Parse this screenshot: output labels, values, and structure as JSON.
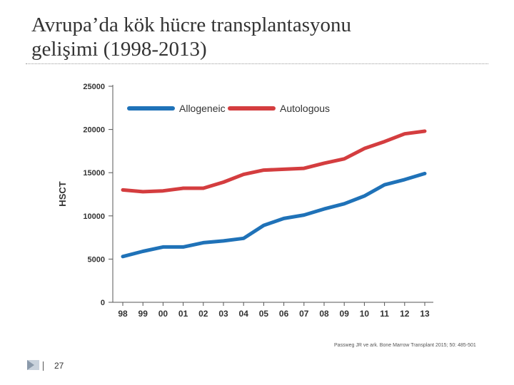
{
  "slide": {
    "title_line1": "Avrupa’da kök hücre transplantasyonu",
    "title_line2": "gelişimi (1998-2013)",
    "citation": "Passweg JR ve ark. Bone Marrow Transplant 2015; 50: 485-501",
    "page_number": "27"
  },
  "colors": {
    "allogeneic": "#1f72b8",
    "autologous": "#d43d3f",
    "axis": "#555555",
    "text": "#333333"
  },
  "chart_data": {
    "type": "line",
    "title": "",
    "xlabel": "",
    "ylabel": "HSCT",
    "categories": [
      "98",
      "99",
      "00",
      "01",
      "02",
      "03",
      "04",
      "05",
      "06",
      "07",
      "08",
      "09",
      "10",
      "11",
      "12",
      "13"
    ],
    "ylim": [
      0,
      25000
    ],
    "yticks": [
      0,
      5000,
      10000,
      15000,
      20000,
      25000
    ],
    "ytick_labels": [
      "0",
      "5000",
      "10000",
      "15000",
      "20000",
      "25000"
    ],
    "legend_position": "top",
    "grid": false,
    "series": [
      {
        "name": "Allogeneic",
        "values": [
          5300,
          5900,
          6400,
          6400,
          6900,
          7100,
          7400,
          8900,
          9700,
          10100,
          10800,
          11400,
          12300,
          13600,
          14200,
          14900
        ]
      },
      {
        "name": "Autologous",
        "values": [
          13000,
          12800,
          12900,
          13200,
          13200,
          13900,
          14800,
          15300,
          15400,
          15500,
          16100,
          16600,
          17800,
          18600,
          19500,
          19800
        ]
      }
    ]
  }
}
